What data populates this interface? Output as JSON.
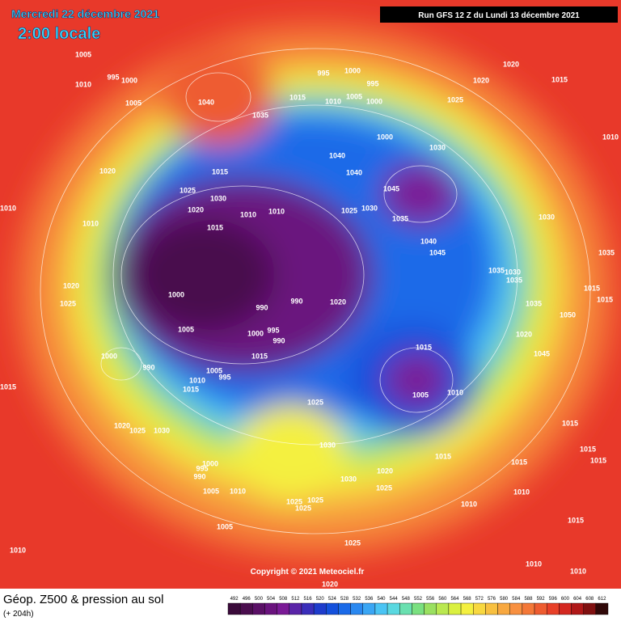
{
  "header": {
    "date": "Mercredi 22 décembre 2021",
    "time": "2:00 locale",
    "run": "Run GFS 12 Z du Lundi 13 décembre 2021"
  },
  "footer": {
    "title": "Géop. Z500 & pression au sol",
    "lead": "(+ 204h)",
    "copyright": "Copyright © 2021 Meteociel.fr"
  },
  "legend": {
    "levels": [
      492,
      496,
      500,
      504,
      508,
      512,
      516,
      520,
      524,
      528,
      532,
      536,
      540,
      544,
      548,
      552,
      556,
      560,
      564,
      568,
      572,
      576,
      580,
      584,
      588,
      592,
      596,
      600,
      604,
      608,
      612
    ],
    "colors": [
      "#3a0a3a",
      "#4a0d4e",
      "#5a1066",
      "#6a137e",
      "#7a1a96",
      "#5a24a8",
      "#3a2eba",
      "#1e3ccc",
      "#1450dc",
      "#1a6ae8",
      "#2a88f0",
      "#3aa6f4",
      "#4ac4f4",
      "#5ad8e0",
      "#6ae0b0",
      "#7ae080",
      "#9ae060",
      "#bae850",
      "#daf040",
      "#f4f040",
      "#f8d840",
      "#f8c040",
      "#f8a840",
      "#f89040",
      "#f47838",
      "#ee5c30",
      "#e84028",
      "#d42820",
      "#b01818",
      "#801010",
      "#300808"
    ]
  },
  "isobars": [
    "1005",
    "1010",
    "995",
    "1000",
    "1005",
    "1040",
    "1035",
    "1015",
    "995",
    "1000",
    "1010",
    "1005",
    "995",
    "1000",
    "1025",
    "1020",
    "1020",
    "1015",
    "1010",
    "1020",
    "1010",
    "1025",
    "1030",
    "1020",
    "1015",
    "1010",
    "1010",
    "1015",
    "1000",
    "1030",
    "1040",
    "1040",
    "1045",
    "1025",
    "1030",
    "1035",
    "1040",
    "1045",
    "1030",
    "1035",
    "1030",
    "1035",
    "1010",
    "1020",
    "1025",
    "1000",
    "990",
    "990",
    "1020",
    "1005",
    "1000",
    "995",
    "990",
    "1015",
    "1000",
    "990",
    "1010",
    "1005",
    "995",
    "1015",
    "1015",
    "1005",
    "1010",
    "1025",
    "1015",
    "1020",
    "1025",
    "1030",
    "1000",
    "995",
    "990",
    "1005",
    "1010",
    "1030",
    "1020",
    "1030",
    "1025",
    "1015",
    "1005",
    "1025",
    "1025",
    "1025",
    "1010",
    "1010",
    "1015",
    "1015",
    "1015",
    "1015",
    "1035",
    "1020",
    "1045",
    "1050",
    "1015",
    "1015",
    "1010",
    "1025",
    "1020",
    "1010",
    "1010",
    "1015",
    "1035"
  ]
}
